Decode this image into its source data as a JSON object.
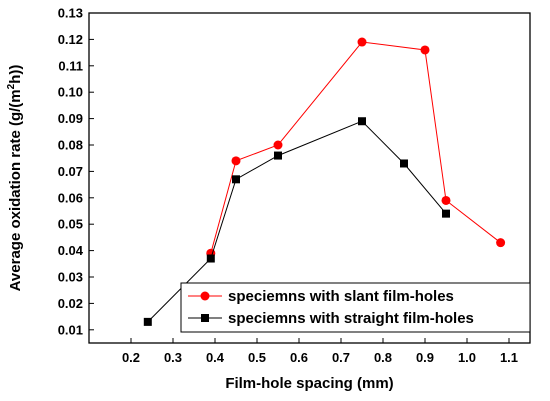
{
  "chart_data": {
    "type": "line",
    "xlabel": "Film-hole spacing (mm)",
    "ylabel": "Average oxidation rate (g/(m",
    "ylabel_sup": "2",
    "ylabel_tail": "h))",
    "xlim": [
      0.1,
      1.15
    ],
    "ylim": [
      0.005,
      0.13
    ],
    "xticks": [
      0.2,
      0.3,
      0.4,
      0.5,
      0.6,
      0.7,
      0.8,
      0.9,
      1.0,
      1.1
    ],
    "xtick_labels": [
      "0.2",
      "0.3",
      "0.4",
      "0.5",
      "0.6",
      "0.7",
      "0.8",
      "0.9",
      "1.0",
      "1.1"
    ],
    "yticks": [
      0.01,
      0.02,
      0.03,
      0.04,
      0.05,
      0.06,
      0.07,
      0.08,
      0.09,
      0.1,
      0.11,
      0.12,
      0.13
    ],
    "ytick_labels": [
      "0.01",
      "0.02",
      "0.03",
      "0.04",
      "0.05",
      "0.06",
      "0.07",
      "0.08",
      "0.09",
      "0.10",
      "0.11",
      "0.12",
      "0.13"
    ],
    "grid": false,
    "legend_position": "bottom-right",
    "series": [
      {
        "name": "speciemns with slant film-holes",
        "color": "#ff0000",
        "marker": "circle",
        "x": [
          0.39,
          0.45,
          0.55,
          0.75,
          0.9,
          0.95,
          1.08
        ],
        "y": [
          0.039,
          0.074,
          0.08,
          0.119,
          0.116,
          0.059,
          0.043
        ]
      },
      {
        "name": "speciemns with straight film-holes",
        "color": "#000000",
        "marker": "square",
        "x": [
          0.24,
          0.39,
          0.45,
          0.55,
          0.75,
          0.85,
          0.95
        ],
        "y": [
          0.013,
          0.037,
          0.067,
          0.076,
          0.089,
          0.073,
          0.054
        ]
      }
    ]
  }
}
